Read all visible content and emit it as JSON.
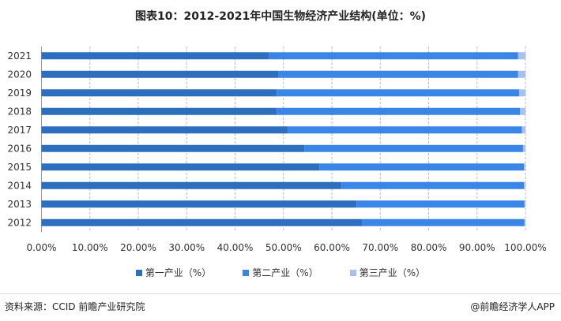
{
  "chart_data": {
    "type": "bar",
    "orientation": "horizontal-stacked",
    "title": "图表10：2012-2021年中国生物经济产业结构(单位：%)",
    "categories": [
      "2021",
      "2020",
      "2019",
      "2018",
      "2017",
      "2016",
      "2015",
      "2014",
      "2013",
      "2012"
    ],
    "series": [
      {
        "name": "第一产业（%）",
        "color": "#2e6ebf",
        "values": [
          47.0,
          48.9,
          48.6,
          48.6,
          50.9,
          54.3,
          57.4,
          62.0,
          65.1,
          66.2
        ]
      },
      {
        "name": "第二产业（%）",
        "color": "#3a86e6",
        "values": [
          51.5,
          49.6,
          50.1,
          50.3,
          48.4,
          45.2,
          42.3,
          37.7,
          34.7,
          33.6
        ]
      },
      {
        "name": "第三产业（%）",
        "color": "#a8c0f0",
        "values": [
          1.5,
          1.5,
          1.3,
          1.1,
          0.7,
          0.5,
          0.3,
          0.3,
          0.2,
          0.2
        ]
      }
    ],
    "xlim": [
      0,
      100
    ],
    "xticks": [
      "0.00%",
      "10.00%",
      "20.00%",
      "30.00%",
      "40.00%",
      "50.00%",
      "60.00%",
      "70.00%",
      "80.00%",
      "90.00%",
      "100.00%"
    ],
    "grid": true,
    "legend": "bottom"
  },
  "footer": {
    "source": "资料来源：CCID 前瞻产业研究院",
    "brand": "@前瞻经济学人APP"
  }
}
